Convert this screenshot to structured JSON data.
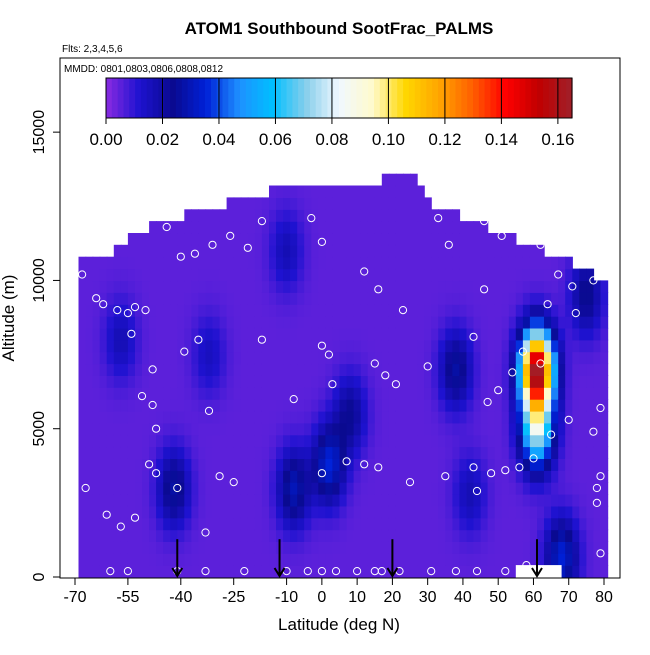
{
  "chart_data": {
    "type": "heatmap",
    "title": "ATOM1 Southbound SootFrac_PALMS",
    "annotations": [
      "Flts: 2,3,4,5,6",
      "MMDD: 0801,0803,0806,0808,0812"
    ],
    "xlabel": "Latitude (deg N)",
    "ylabel": "Altitude (m)",
    "xlim": [
      -70,
      80
    ],
    "ylim": [
      0,
      17500
    ],
    "x_ticks": [
      -70,
      -55,
      -40,
      -25,
      -10,
      0,
      10,
      20,
      30,
      40,
      50,
      60,
      70,
      80
    ],
    "x_tick_labels": [
      "-70",
      "-55",
      "-40",
      "-25",
      "-10",
      "0",
      "10",
      "20",
      "30",
      "40",
      "50",
      "60",
      "70",
      "80"
    ],
    "y_ticks": [
      0,
      5000,
      10000,
      15000
    ],
    "y_tick_labels": [
      "0",
      "5000",
      "10000",
      "15000"
    ],
    "colorbar": {
      "range": [
        0,
        0.165
      ],
      "ticks": [
        0.0,
        0.02,
        0.04,
        0.06,
        0.08,
        0.1,
        0.12,
        0.14,
        0.16
      ],
      "tick_labels": [
        "0.00",
        "0.02",
        "0.04",
        "0.06",
        "0.08",
        "0.10",
        "0.12",
        "0.14",
        "0.16"
      ],
      "colors": [
        "#8a2be2",
        "#1e12d0",
        "#0a0a90",
        "#0020d8",
        "#1e90ff",
        "#00bfff",
        "#87ceeb",
        "#f0f8ff",
        "#fffacd",
        "#ffd700",
        "#ffa500",
        "#ff6000",
        "#ff0000",
        "#c00000",
        "#a0202a"
      ]
    },
    "background_value": 0.005,
    "profile_boundary": [
      [
        -69,
        10500
      ],
      [
        -60,
        10500
      ],
      [
        -58,
        11000
      ],
      [
        -52,
        11500
      ],
      [
        -40,
        12000
      ],
      [
        -25,
        12500
      ],
      [
        -10,
        13000
      ],
      [
        10,
        13000
      ],
      [
        25,
        13500
      ],
      [
        30,
        12500
      ],
      [
        40,
        12000
      ],
      [
        50,
        11500
      ],
      [
        60,
        11000
      ],
      [
        70,
        10500
      ],
      [
        78,
        10000
      ],
      [
        80,
        6000
      ],
      [
        80,
        0
      ],
      [
        -69,
        0
      ]
    ],
    "features": [
      {
        "lat": -57,
        "alt": 8000,
        "value": 0.012
      },
      {
        "lat": -42,
        "alt": 3000,
        "value": 0.022
      },
      {
        "lat": -32,
        "alt": 7500,
        "value": 0.01
      },
      {
        "lat": -8,
        "alt": 3000,
        "value": 0.025
      },
      {
        "lat": 2,
        "alt": 3800,
        "value": 0.03
      },
      {
        "lat": 8,
        "alt": 5500,
        "value": 0.018
      },
      {
        "lat": -10,
        "alt": 11000,
        "value": 0.012
      },
      {
        "lat": 38,
        "alt": 7000,
        "value": 0.022
      },
      {
        "lat": 42,
        "alt": 2800,
        "value": 0.012
      },
      {
        "lat": 61,
        "alt": 7000,
        "value": 0.16
      },
      {
        "lat": 61,
        "alt": 5000,
        "value": 0.07
      },
      {
        "lat": 68,
        "alt": 700,
        "value": 0.03
      },
      {
        "lat": 75,
        "alt": 9500,
        "value": 0.02
      }
    ],
    "sample_points": [
      [
        -68,
        10200
      ],
      [
        -64,
        9400
      ],
      [
        -62,
        9200
      ],
      [
        -58,
        9000
      ],
      [
        -55,
        8900
      ],
      [
        -53,
        9100
      ],
      [
        -50,
        9000
      ],
      [
        -54,
        8200
      ],
      [
        -48,
        7000
      ],
      [
        -48,
        5800
      ],
      [
        -47,
        5000
      ],
      [
        -51,
        6100
      ],
      [
        -40,
        10800
      ],
      [
        -36,
        10900
      ],
      [
        -31,
        11200
      ],
      [
        -26,
        11500
      ],
      [
        -21,
        11100
      ],
      [
        -44,
        11800
      ],
      [
        -49,
        3800
      ],
      [
        -47,
        3500
      ],
      [
        -41,
        3000
      ],
      [
        -29,
        3400
      ],
      [
        -33,
        1500
      ],
      [
        -53,
        2000
      ],
      [
        -57,
        1700
      ],
      [
        -61,
        2100
      ],
      [
        -67,
        3000
      ],
      [
        -60,
        200
      ],
      [
        -55,
        200
      ],
      [
        -41,
        200
      ],
      [
        -33,
        200
      ],
      [
        -22,
        200
      ],
      [
        -10,
        200
      ],
      [
        -4,
        200
      ],
      [
        0,
        200
      ],
      [
        4,
        200
      ],
      [
        10,
        200
      ],
      [
        15,
        200
      ],
      [
        17,
        200
      ],
      [
        22,
        200
      ],
      [
        31,
        200
      ],
      [
        38,
        200
      ],
      [
        44,
        200
      ],
      [
        52,
        200
      ],
      [
        58,
        400
      ],
      [
        -39,
        7600
      ],
      [
        -32,
        5600
      ],
      [
        -35,
        8000
      ],
      [
        -17,
        8000
      ],
      [
        -8,
        6000
      ],
      [
        0,
        7800
      ],
      [
        2,
        7500
      ],
      [
        0,
        11300
      ],
      [
        -3,
        12100
      ],
      [
        12,
        10300
      ],
      [
        16,
        9700
      ],
      [
        15,
        7200
      ],
      [
        18,
        6800
      ],
      [
        21,
        6500
      ],
      [
        23,
        9000
      ],
      [
        30,
        7100
      ],
      [
        33,
        12100
      ],
      [
        36,
        11200
      ],
      [
        43,
        8100
      ],
      [
        46,
        12000
      ],
      [
        46,
        9700
      ],
      [
        51,
        11500
      ],
      [
        62,
        11200
      ],
      [
        67,
        10200
      ],
      [
        71,
        9800
      ],
      [
        72,
        8900
      ],
      [
        64,
        9200
      ],
      [
        62,
        7200
      ],
      [
        57,
        7600
      ],
      [
        54,
        6900
      ],
      [
        50,
        6300
      ],
      [
        47,
        5900
      ],
      [
        43,
        3700
      ],
      [
        44,
        2900
      ],
      [
        48,
        3500
      ],
      [
        52,
        3600
      ],
      [
        56,
        3700
      ],
      [
        60,
        4000
      ],
      [
        65,
        4800
      ],
      [
        70,
        5300
      ],
      [
        77,
        4900
      ],
      [
        79,
        5700
      ],
      [
        78,
        3000
      ],
      [
        79,
        800
      ],
      [
        35,
        3400
      ],
      [
        25,
        3200
      ],
      [
        16,
        3700
      ],
      [
        12,
        3800
      ],
      [
        7,
        3900
      ],
      [
        0,
        3500
      ],
      [
        3,
        6500
      ],
      [
        -17,
        12000
      ],
      [
        -25,
        3200
      ],
      [
        63,
        12000
      ],
      [
        77,
        10000
      ],
      [
        78,
        2500
      ],
      [
        79,
        3400
      ]
    ],
    "arrows": [
      -41,
      -12,
      20,
      61
    ]
  }
}
